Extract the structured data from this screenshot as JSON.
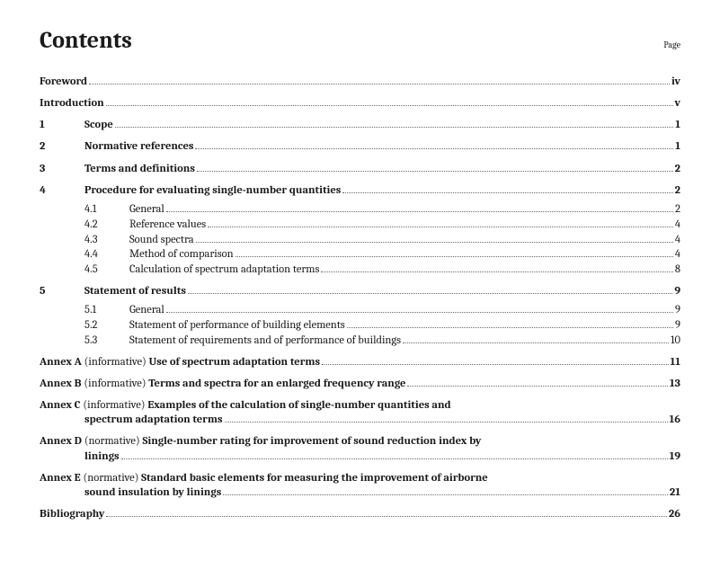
{
  "header": {
    "title": "Contents",
    "page_label": "Page"
  },
  "front": [
    {
      "label": "Foreword",
      "page": "iv"
    },
    {
      "label": "Introduction",
      "page": "v"
    }
  ],
  "sections": [
    {
      "num": "1",
      "label": "Scope",
      "page": "1",
      "subs": []
    },
    {
      "num": "2",
      "label": "Normative references",
      "page": "1",
      "subs": []
    },
    {
      "num": "3",
      "label": "Terms and definitions",
      "page": "2",
      "subs": []
    },
    {
      "num": "4",
      "label": "Procedure for evaluating single-number quantities",
      "page": "2",
      "subs": [
        {
          "num": "4.1",
          "label": "General",
          "page": "2"
        },
        {
          "num": "4.2",
          "label": "Reference values",
          "page": "4"
        },
        {
          "num": "4.3",
          "label": "Sound spectra",
          "page": "4"
        },
        {
          "num": "4.4",
          "label": "Method of comparison",
          "page": "4"
        },
        {
          "num": "4.5",
          "label": "Calculation of spectrum adaptation terms",
          "page": "8"
        }
      ]
    },
    {
      "num": "5",
      "label": "Statement of results",
      "page": "9",
      "subs": [
        {
          "num": "5.1",
          "label": "General",
          "page": "9"
        },
        {
          "num": "5.2",
          "label": "Statement of performance of building elements",
          "page": "9"
        },
        {
          "num": "5.3",
          "label": "Statement of requirements and of performance of buildings",
          "page": "10"
        }
      ]
    }
  ],
  "annexes": [
    {
      "prefix": "Annex A",
      "note": "(informative)",
      "title": "Use of spectrum adaptation terms",
      "page": "11",
      "cont": null
    },
    {
      "prefix": "Annex B",
      "note": "(informative)",
      "title": "Terms and spectra for an enlarged frequency range",
      "page": "13",
      "cont": null
    },
    {
      "prefix": "Annex C",
      "note": "(informative)",
      "title": "Examples of the calculation of single-number quantities and",
      "page": "16",
      "cont": "spectrum adaptation terms"
    },
    {
      "prefix": "Annex D",
      "note": "(normative)",
      "title": "Single-number rating for improvement of sound reduction index by",
      "page": "19",
      "cont": "linings"
    },
    {
      "prefix": "Annex E",
      "note": "(normative)",
      "title": "Standard basic elements for measuring the improvement of airborne",
      "page": "21",
      "cont": "sound insulation by linings"
    }
  ],
  "back": [
    {
      "label": "Bibliography",
      "page": "26"
    }
  ]
}
